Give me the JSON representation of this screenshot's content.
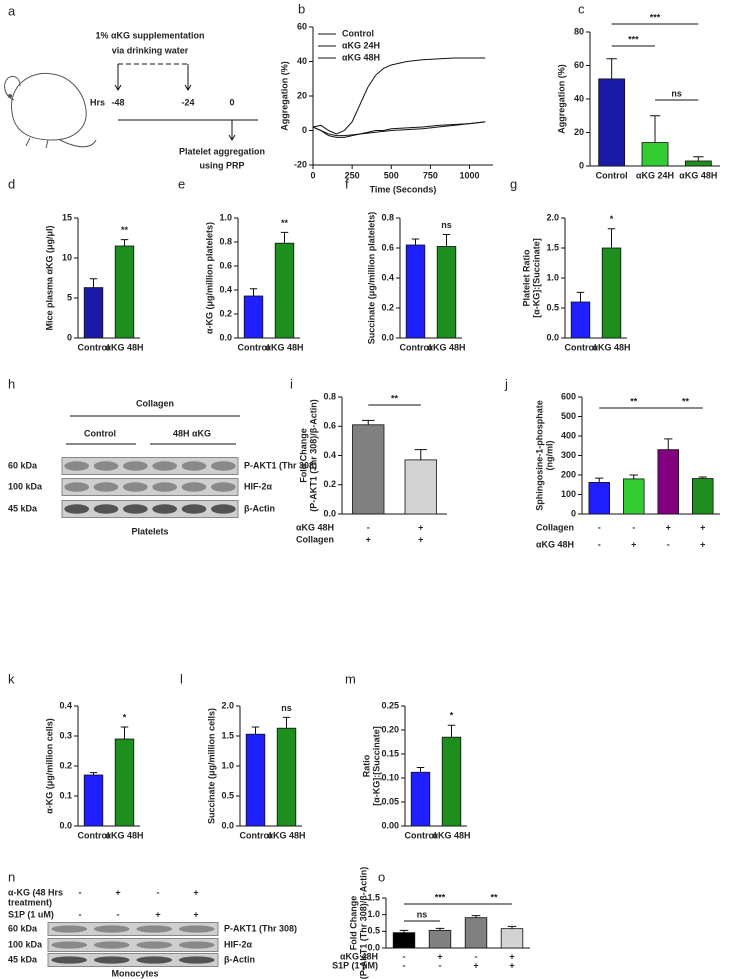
{
  "diagram_a": {
    "panel": "a",
    "title_lines": [
      "1% αKG supplementation",
      "via drinking water"
    ],
    "axis_label": "Hrs",
    "times": [
      "-48",
      "-24",
      "0"
    ],
    "outcome_lines": [
      "Platelet aggregation",
      "using PRP"
    ]
  },
  "blot_h": {
    "panel": "h",
    "treatment": "Collagen",
    "groups": [
      "Control",
      "48H αKG"
    ],
    "sizes": [
      "60 kDa",
      "100 kDa",
      "45 kDa"
    ],
    "proteins": [
      "P-AKT1 (Thr 308)",
      "HIF-2α",
      "β-Actin"
    ],
    "cells": "Platelets"
  },
  "blot_n": {
    "panel": "n",
    "conditions": [
      {
        "label_lines": [
          "α-KG (48 Hrs",
          "treatment)"
        ],
        "signs": [
          "-",
          "+",
          "-",
          "+"
        ]
      },
      {
        "label_lines": [
          "S1P (1 uM)"
        ],
        "signs": [
          "-",
          "-",
          "+",
          "+"
        ]
      }
    ],
    "sizes": [
      "60 kDa",
      "100 kDa",
      "45 kDa"
    ],
    "proteins": [
      "P-AKT1 (Thr 308)",
      "HIF-2α",
      "β-Actin"
    ],
    "cells": "Monocytes"
  },
  "chart_data": [
    {
      "type": "line",
      "panel": "b",
      "xlabel": "Time (Seconds)",
      "ylabel": "Aggregation (%)",
      "legend": "upper left",
      "x": [
        0,
        50,
        100,
        150,
        200,
        250,
        300,
        350,
        400,
        450,
        500,
        600,
        700,
        800,
        900,
        1000,
        1100
      ],
      "xlim": [
        0,
        1150
      ],
      "xticks": [
        0,
        250,
        500,
        750,
        1000
      ],
      "ylim": [
        -20,
        60
      ],
      "yticks": [
        -20,
        0,
        20,
        40,
        60
      ],
      "series": [
        {
          "name": "Control",
          "color": "#1f1fd6",
          "values": [
            2,
            3,
            0,
            -2,
            0,
            5,
            15,
            25,
            32,
            36,
            38,
            40,
            41,
            41.5,
            42,
            42,
            42
          ]
        },
        {
          "name": "αKG 24H",
          "color": "#33cc33",
          "values": [
            2,
            0,
            -3,
            -4,
            -4,
            -3,
            -2,
            -1,
            0,
            0,
            1,
            1.5,
            2,
            3,
            3.5,
            4,
            5
          ]
        },
        {
          "name": "αKG 48H",
          "color": "#1e8f1e",
          "values": [
            2,
            0,
            -2,
            -3,
            -3,
            -2.5,
            -2,
            -1.5,
            -1,
            -0.5,
            0,
            0.5,
            1,
            2,
            3,
            4,
            5
          ]
        }
      ]
    },
    {
      "type": "bar",
      "panel": "c",
      "ylabel": "Aggregation (%)",
      "categories": [
        "Control",
        "αKG 24H",
        "αKG 48H"
      ],
      "values": [
        52,
        14,
        3
      ],
      "errors": [
        12,
        16,
        2.5
      ],
      "colors": [
        "#1a1aa6",
        "#33cc33",
        "#1e8f1e"
      ],
      "ylim": [
        0,
        80
      ],
      "yticks": [
        0,
        20,
        40,
        60,
        80
      ],
      "annotations": [
        "***",
        "***",
        "ns"
      ]
    },
    {
      "type": "bar",
      "panel": "d",
      "ylabel": "Mice plasma αKG (μg/μl)",
      "categories": [
        "Control",
        "αKG 48H"
      ],
      "values": [
        6.3,
        11.5
      ],
      "errors": [
        1.1,
        0.8
      ],
      "colors": [
        "#1a1aa6",
        "#1e8f1e"
      ],
      "ylim": [
        0,
        15
      ],
      "yticks": [
        0,
        5,
        10,
        15
      ],
      "annotations": [
        "**"
      ]
    },
    {
      "type": "bar",
      "panel": "e",
      "ylabel": "α-KG (μg/million platelets)",
      "categories": [
        "Control",
        "αKG 48H"
      ],
      "values": [
        0.35,
        0.79
      ],
      "errors": [
        0.06,
        0.09
      ],
      "colors": [
        "#1f1fff",
        "#1e8f1e"
      ],
      "ylim": [
        0,
        1
      ],
      "yticks": [
        {
          "value": 0,
          "label": "0.0"
        },
        0.2,
        0.4,
        0.6,
        0.8,
        {
          "value": 1,
          "label": "1.0"
        }
      ],
      "annotations": [
        "**"
      ]
    },
    {
      "type": "bar",
      "panel": "f",
      "ylabel": "Succinate (μg/million platelets)",
      "categories": [
        "Control",
        "αKG 48H"
      ],
      "values": [
        0.62,
        0.61
      ],
      "errors": [
        0.04,
        0.08
      ],
      "colors": [
        "#1f1fff",
        "#1e8f1e"
      ],
      "ylim": [
        0,
        0.8
      ],
      "yticks": [
        {
          "value": 0,
          "label": "0.0"
        },
        0.2,
        0.4,
        0.6,
        0.8
      ],
      "annotations": [
        "ns"
      ]
    },
    {
      "type": "bar",
      "panel": "g",
      "ylabel": [
        "Platelet Ratio",
        "[α-KG]:[Succinate]"
      ],
      "categories": [
        "Control",
        "αKG 48H"
      ],
      "values": [
        0.6,
        1.5
      ],
      "errors": [
        0.16,
        0.32
      ],
      "colors": [
        "#1f1fff",
        "#1e8f1e"
      ],
      "ylim": [
        0,
        2
      ],
      "yticks": [
        {
          "value": 0,
          "label": "0.0"
        },
        0.5,
        {
          "value": 1,
          "label": "1.0"
        },
        1.5,
        {
          "value": 2,
          "label": "2.0"
        }
      ],
      "annotations": [
        "*"
      ]
    },
    {
      "type": "bar",
      "panel": "i",
      "ylabel": [
        "Fold Change",
        "(P-AKT1 (Thr 308)/β-Actin)"
      ],
      "categories": [
        null,
        null
      ],
      "values": [
        0.61,
        0.37
      ],
      "errors": [
        0.03,
        0.07
      ],
      "colors": [
        "#808080",
        "#d3d3d3"
      ],
      "ylim": [
        0,
        0.8
      ],
      "yticks": [
        {
          "value": 0,
          "label": "0.0"
        },
        0.2,
        0.4,
        0.6,
        0.8
      ],
      "annotations": [
        "**"
      ],
      "conditions": [
        {
          "label": "αKG 48H",
          "signs": [
            "-",
            "+"
          ]
        },
        {
          "label": "Collagen",
          "signs": [
            "+",
            "+"
          ]
        }
      ]
    },
    {
      "type": "bar",
      "panel": "j",
      "ylabel": [
        "Sphingosine-1-phosphate",
        "(ng/ml)"
      ],
      "categories": [
        null,
        null,
        null,
        null
      ],
      "values": [
        162,
        180,
        330,
        182
      ],
      "errors": [
        22,
        20,
        55,
        8
      ],
      "colors": [
        "#1f1fff",
        "#33cc33",
        "#800080",
        "#1e8f1e"
      ],
      "ylim": [
        0,
        600
      ],
      "yticks": [
        0,
        100,
        200,
        300,
        400,
        500,
        600
      ],
      "annotations": [
        "**",
        "**"
      ],
      "conditions": [
        {
          "label": "Collagen",
          "signs": [
            "-",
            "-",
            "+",
            "+"
          ]
        },
        {
          "label": "αKG 48H",
          "signs": [
            "-",
            "+",
            "-",
            "+"
          ]
        }
      ]
    },
    {
      "type": "bar",
      "panel": "k",
      "ylabel": "α-KG (μg/million cells)",
      "categories": [
        "Control",
        "αKG 48H"
      ],
      "values": [
        0.17,
        0.29
      ],
      "errors": [
        0.008,
        0.04
      ],
      "colors": [
        "#1f1fff",
        "#1e8f1e"
      ],
      "ylim": [
        0,
        0.4
      ],
      "yticks": [
        {
          "value": 0,
          "label": "0.0"
        },
        0.1,
        0.2,
        0.3,
        0.4
      ],
      "annotations": [
        "*"
      ]
    },
    {
      "type": "bar",
      "panel": "l",
      "ylabel": "Succinate (μg/million cells)",
      "categories": [
        "Control",
        "αKG 48H"
      ],
      "values": [
        1.53,
        1.63
      ],
      "errors": [
        0.12,
        0.18
      ],
      "colors": [
        "#1f1fff",
        "#1e8f1e"
      ],
      "ylim": [
        0,
        2
      ],
      "yticks": [
        {
          "value": 0,
          "label": "0.0"
        },
        0.5,
        {
          "value": 1,
          "label": "1.0"
        },
        1.5,
        {
          "value": 2,
          "label": "2.0"
        }
      ],
      "annotations": [
        "ns"
      ]
    },
    {
      "type": "bar",
      "panel": "m",
      "ylabel": [
        "Ratio",
        "[α-KG]:[Succinate]"
      ],
      "categories": [
        "Control",
        "αKG 48H"
      ],
      "values": [
        0.112,
        0.185
      ],
      "errors": [
        0.01,
        0.025
      ],
      "colors": [
        "#1f1fff",
        "#1e8f1e"
      ],
      "ylim": [
        0,
        0.25
      ],
      "yticks": [
        {
          "value": 0,
          "label": "0.00"
        },
        0.05,
        {
          "value": 0.1,
          "label": "0.10"
        },
        0.15,
        {
          "value": 0.2,
          "label": "0.20"
        },
        0.25
      ],
      "annotations": [
        "*"
      ]
    },
    {
      "type": "bar",
      "panel": "o",
      "ylabel": [
        "Fold Change",
        "(P-AKT1 (Thr 308)/β-Actin)"
      ],
      "categories": [
        null,
        null,
        null,
        null
      ],
      "values": [
        0.46,
        0.53,
        0.91,
        0.58
      ],
      "errors": [
        0.07,
        0.06,
        0.06,
        0.07
      ],
      "colors": [
        "#000000",
        "#808080",
        "#808080",
        "#d3d3d3"
      ],
      "ylim": [
        0,
        1.5
      ],
      "yticks": [
        {
          "value": 0,
          "label": "0.0"
        },
        0.5,
        {
          "value": 1,
          "label": "1.0"
        },
        1.5
      ],
      "annotations": [
        "ns",
        "***",
        "**"
      ],
      "conditions": [
        {
          "label": "αKG 48H",
          "signs": [
            "-",
            "+",
            "-",
            "+"
          ]
        },
        {
          "label": "S1P (1 μM)",
          "signs": [
            "-",
            "-",
            "+",
            "+"
          ]
        }
      ]
    }
  ]
}
